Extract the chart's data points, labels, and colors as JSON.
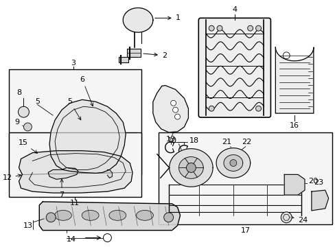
{
  "bg_color": "#ffffff",
  "line_color": "#000000",
  "fig_width": 4.89,
  "fig_height": 3.6,
  "dpi": 100,
  "font_size": 8,
  "font_size_small": 7
}
